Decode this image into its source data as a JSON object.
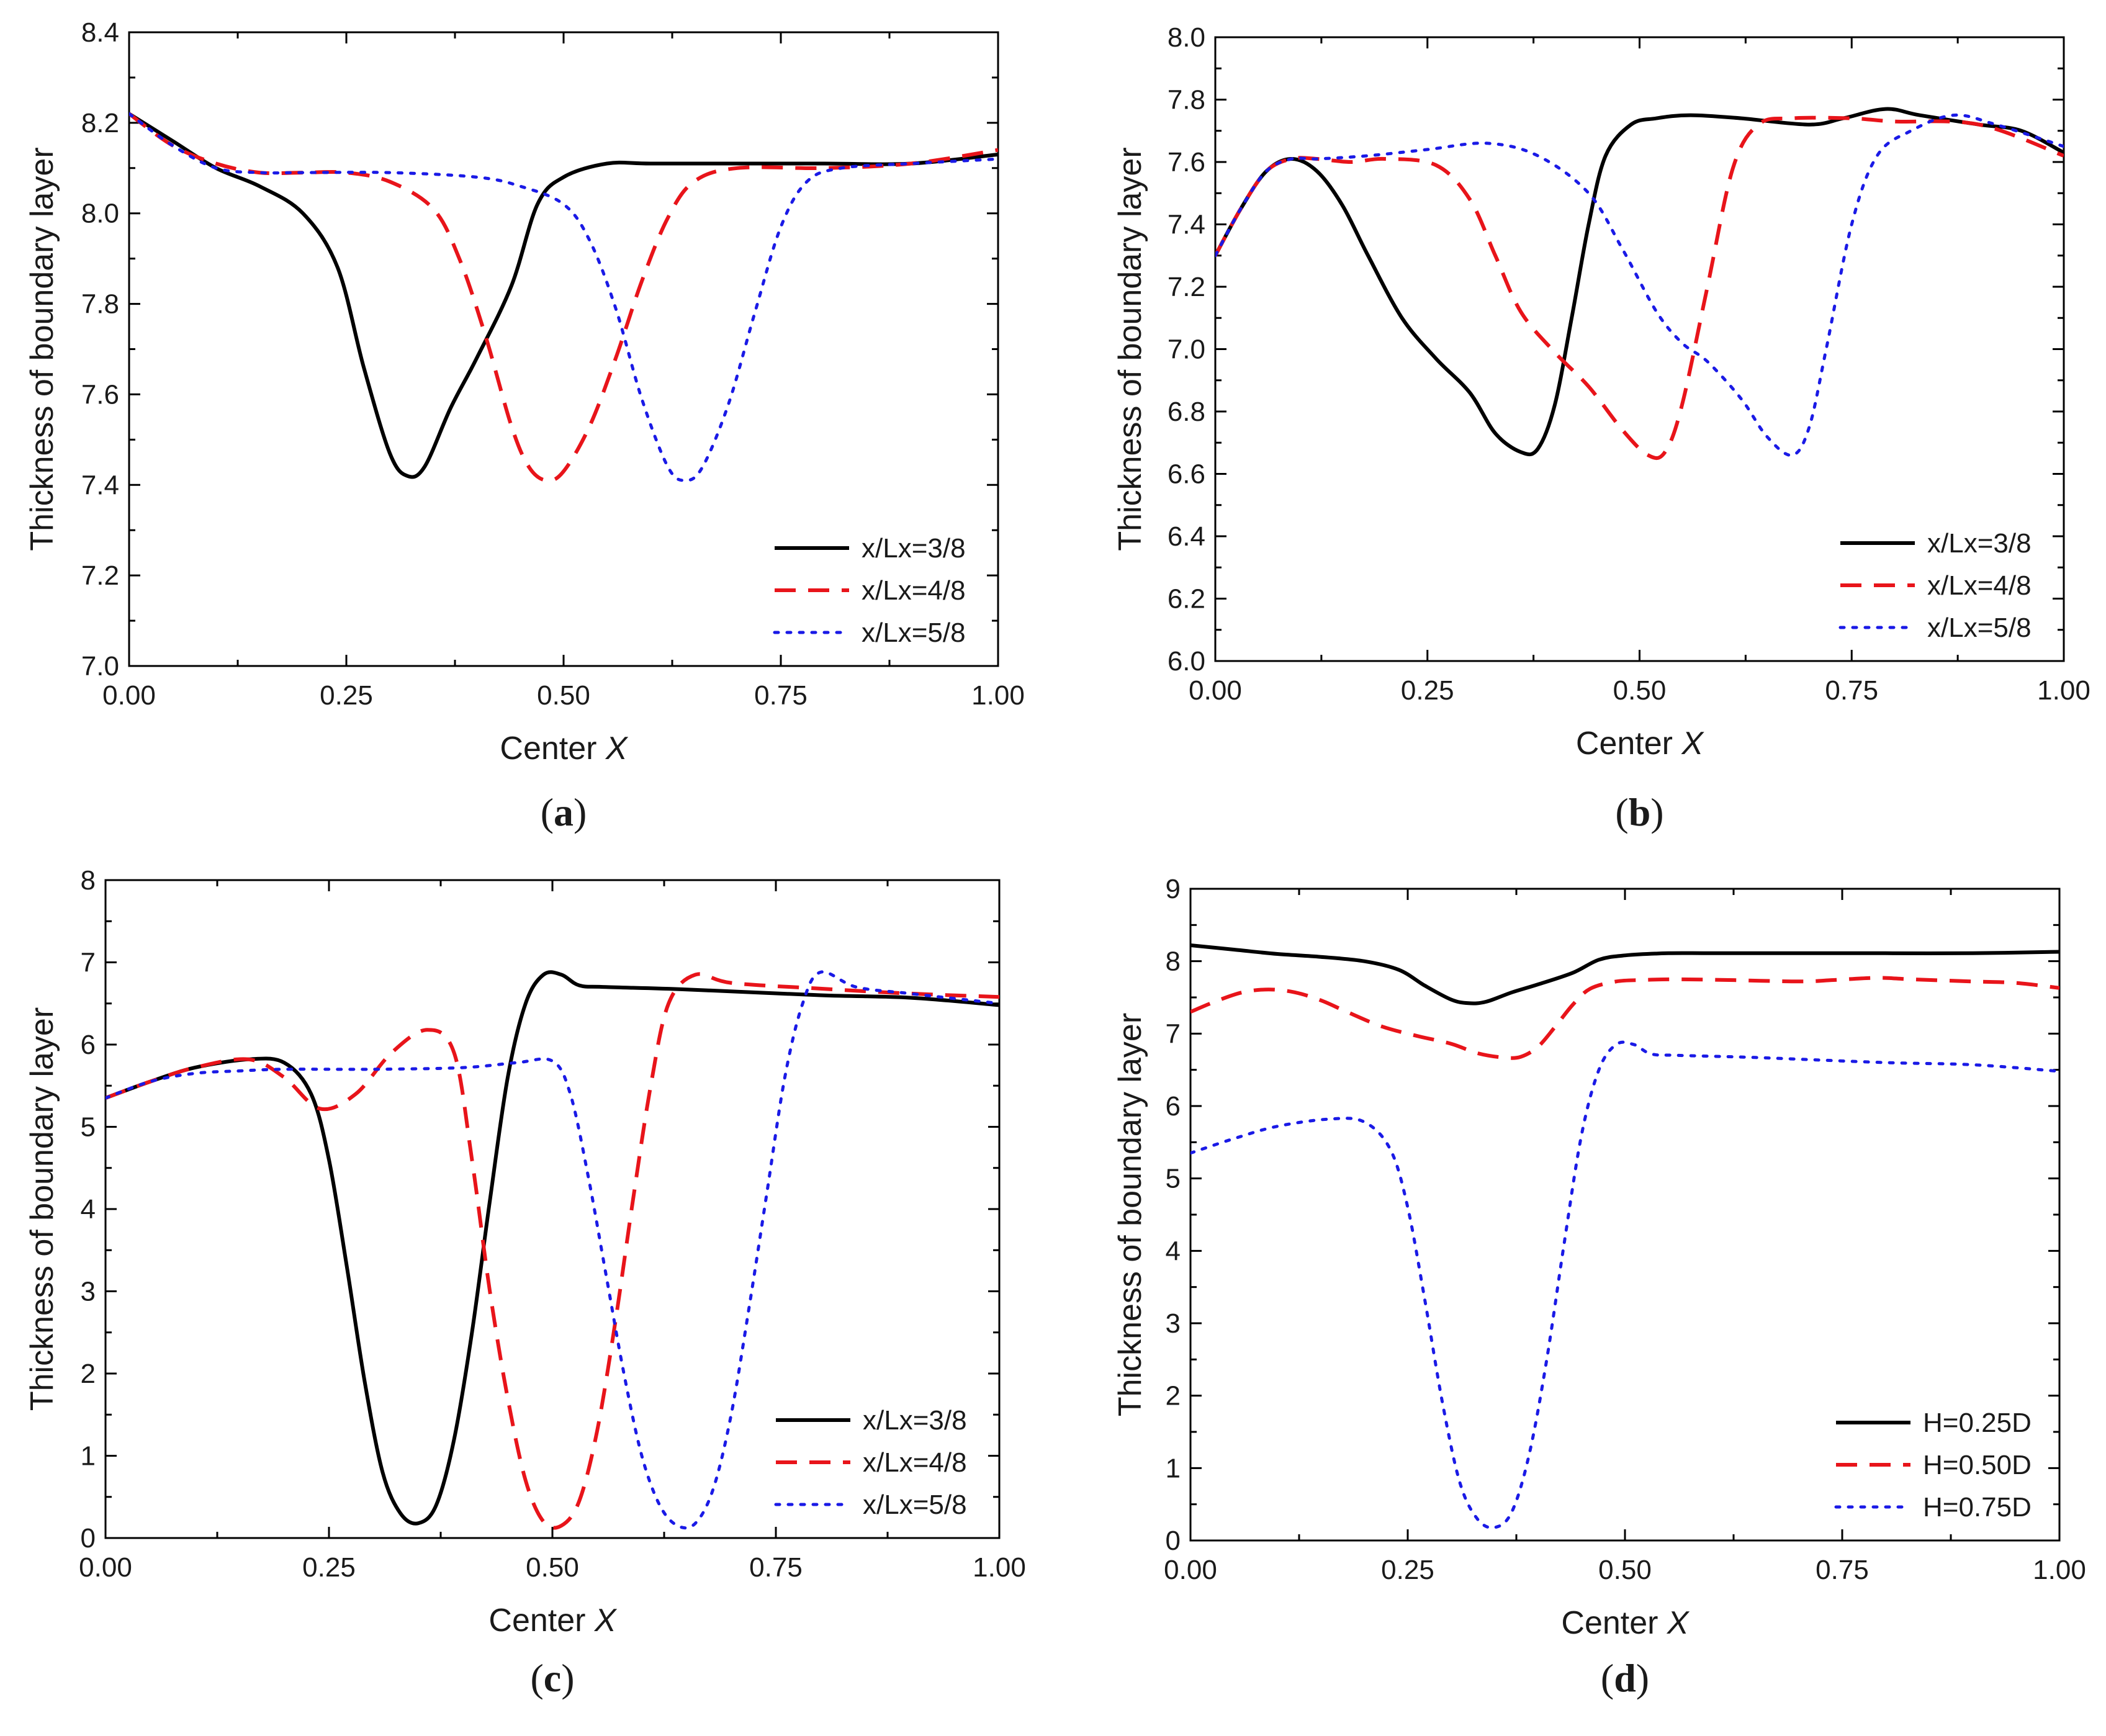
{
  "chart_data": [
    {
      "type": "line",
      "panel_key": "a",
      "caption": {
        "open": "(",
        "letter": "a",
        "close": ")"
      },
      "xlabel": "Center ",
      "xlabel_italic": "X",
      "ylabel": "Thickness of boundary layer",
      "xlim": [
        0,
        1
      ],
      "ylim": [
        7.0,
        8.4
      ],
      "x_ticks": [
        "0.00",
        "0.25",
        "0.50",
        "0.75",
        "1.00"
      ],
      "y_ticks": [
        "7.0",
        "7.2",
        "7.4",
        "7.6",
        "7.8",
        "8.0",
        "8.2",
        "8.4"
      ],
      "legend_position": "bottom-right",
      "series": [
        {
          "name": "x/Lx=3/8",
          "color": "#000000",
          "style": "solid",
          "x": [
            0,
            0.05,
            0.1,
            0.15,
            0.2,
            0.24,
            0.27,
            0.3,
            0.32,
            0.34,
            0.37,
            0.4,
            0.44,
            0.47,
            0.5,
            0.55,
            0.6,
            0.7,
            0.8,
            0.9,
            1.0
          ],
          "y": [
            8.22,
            8.16,
            8.1,
            8.06,
            8.0,
            7.88,
            7.66,
            7.47,
            7.42,
            7.44,
            7.57,
            7.68,
            7.84,
            8.02,
            8.08,
            8.11,
            8.11,
            8.11,
            8.11,
            8.11,
            8.13
          ]
        },
        {
          "name": "x/Lx=4/8",
          "color": "#e8141a",
          "style": "dash",
          "x": [
            0,
            0.05,
            0.1,
            0.15,
            0.2,
            0.25,
            0.3,
            0.35,
            0.38,
            0.41,
            0.44,
            0.46,
            0.48,
            0.5,
            0.53,
            0.56,
            0.59,
            0.62,
            0.65,
            0.7,
            0.8,
            0.9,
            1.0
          ],
          "y": [
            8.22,
            8.15,
            8.11,
            8.09,
            8.09,
            8.09,
            8.07,
            8.01,
            7.9,
            7.73,
            7.53,
            7.44,
            7.41,
            7.43,
            7.53,
            7.68,
            7.85,
            7.99,
            8.07,
            8.1,
            8.1,
            8.11,
            8.14
          ]
        },
        {
          "name": "x/Lx=5/8",
          "color": "#1a1ae6",
          "style": "dot",
          "x": [
            0,
            0.05,
            0.1,
            0.15,
            0.2,
            0.3,
            0.4,
            0.45,
            0.5,
            0.53,
            0.56,
            0.59,
            0.62,
            0.64,
            0.66,
            0.69,
            0.72,
            0.75,
            0.78,
            0.82,
            0.9,
            1.0
          ],
          "y": [
            8.22,
            8.15,
            8.1,
            8.09,
            8.09,
            8.09,
            8.08,
            8.06,
            8.02,
            7.94,
            7.79,
            7.59,
            7.44,
            7.41,
            7.44,
            7.58,
            7.78,
            7.97,
            8.07,
            8.1,
            8.11,
            8.12
          ]
        }
      ]
    },
    {
      "type": "line",
      "panel_key": "b",
      "caption": {
        "open": "(",
        "letter": "b",
        "close": ")"
      },
      "xlabel": "Center ",
      "xlabel_italic": "X",
      "ylabel": "Thickness of boundary layer",
      "xlim": [
        0,
        1
      ],
      "ylim": [
        6.0,
        8.0
      ],
      "x_ticks": [
        "0.00",
        "0.25",
        "0.50",
        "0.75",
        "1.00"
      ],
      "y_ticks": [
        "6.0",
        "6.2",
        "6.4",
        "6.6",
        "6.8",
        "7.0",
        "7.2",
        "7.4",
        "7.6",
        "7.8",
        "8.0"
      ],
      "legend_position": "bottom-right",
      "series": [
        {
          "name": "x/Lx=3/8",
          "color": "#000000",
          "style": "solid",
          "x": [
            0,
            0.03,
            0.06,
            0.09,
            0.12,
            0.15,
            0.18,
            0.22,
            0.26,
            0.3,
            0.33,
            0.36,
            0.38,
            0.4,
            0.42,
            0.44,
            0.46,
            0.49,
            0.52,
            0.56,
            0.62,
            0.7,
            0.74,
            0.79,
            0.83,
            0.9,
            0.95,
            1.0
          ],
          "y": [
            7.3,
            7.45,
            7.57,
            7.61,
            7.57,
            7.46,
            7.3,
            7.1,
            6.97,
            6.86,
            6.73,
            6.67,
            6.68,
            6.82,
            7.1,
            7.4,
            7.62,
            7.72,
            7.74,
            7.75,
            7.74,
            7.72,
            7.74,
            7.77,
            7.75,
            7.72,
            7.7,
            7.63
          ]
        },
        {
          "name": "x/Lx=4/8",
          "color": "#e8141a",
          "style": "dash",
          "x": [
            0,
            0.03,
            0.06,
            0.09,
            0.12,
            0.16,
            0.2,
            0.26,
            0.3,
            0.33,
            0.36,
            0.4,
            0.44,
            0.48,
            0.51,
            0.53,
            0.55,
            0.58,
            0.61,
            0.64,
            0.68,
            0.75,
            0.8,
            0.9,
            1.0
          ],
          "y": [
            7.3,
            7.45,
            7.57,
            7.61,
            7.61,
            7.6,
            7.61,
            7.59,
            7.48,
            7.3,
            7.12,
            6.99,
            6.88,
            6.74,
            6.66,
            6.67,
            6.82,
            7.2,
            7.58,
            7.72,
            7.74,
            7.74,
            7.73,
            7.72,
            7.62
          ]
        },
        {
          "name": "x/Lx=5/8",
          "color": "#1a1ae6",
          "style": "dot",
          "x": [
            0,
            0.03,
            0.06,
            0.09,
            0.12,
            0.18,
            0.25,
            0.32,
            0.38,
            0.44,
            0.48,
            0.52,
            0.55,
            0.58,
            0.62,
            0.65,
            0.68,
            0.7,
            0.72,
            0.75,
            0.78,
            0.82,
            0.87,
            0.92,
            1.0
          ],
          "y": [
            7.3,
            7.45,
            7.57,
            7.61,
            7.61,
            7.62,
            7.64,
            7.66,
            7.62,
            7.5,
            7.32,
            7.12,
            7.02,
            6.96,
            6.84,
            6.72,
            6.66,
            6.75,
            7.0,
            7.4,
            7.62,
            7.7,
            7.75,
            7.72,
            7.65
          ]
        }
      ]
    },
    {
      "type": "line",
      "panel_key": "c",
      "caption": {
        "open": "(",
        "letter": "c",
        "close": ")"
      },
      "xlabel": "Center ",
      "xlabel_italic": "X",
      "ylabel": "Thickness of boundary layer",
      "xlim": [
        0,
        1
      ],
      "ylim": [
        0,
        8
      ],
      "x_ticks": [
        "0.00",
        "0.25",
        "0.50",
        "0.75",
        "1.00"
      ],
      "y_ticks": [
        "0",
        "1",
        "2",
        "3",
        "4",
        "5",
        "6",
        "7",
        "8"
      ],
      "legend_position": "bottom-right",
      "series": [
        {
          "name": "x/Lx=3/8",
          "color": "#000000",
          "style": "solid",
          "x": [
            0,
            0.05,
            0.1,
            0.16,
            0.2,
            0.23,
            0.25,
            0.27,
            0.29,
            0.31,
            0.33,
            0.35,
            0.37,
            0.39,
            0.41,
            0.43,
            0.45,
            0.47,
            0.49,
            0.51,
            0.53,
            0.56,
            0.65,
            0.8,
            0.9,
            1.0
          ],
          "y": [
            5.35,
            5.55,
            5.72,
            5.82,
            5.78,
            5.4,
            4.6,
            3.3,
            1.9,
            0.8,
            0.3,
            0.18,
            0.4,
            1.2,
            2.5,
            4.1,
            5.6,
            6.5,
            6.85,
            6.85,
            6.72,
            6.7,
            6.67,
            6.6,
            6.57,
            6.48
          ]
        },
        {
          "name": "x/Lx=4/8",
          "color": "#e8141a",
          "style": "dash",
          "x": [
            0,
            0.05,
            0.1,
            0.16,
            0.2,
            0.24,
            0.28,
            0.32,
            0.36,
            0.39,
            0.41,
            0.43,
            0.45,
            0.47,
            0.49,
            0.51,
            0.53,
            0.55,
            0.57,
            0.59,
            0.61,
            0.63,
            0.66,
            0.7,
            0.8,
            0.9,
            1.0
          ],
          "y": [
            5.35,
            5.55,
            5.72,
            5.82,
            5.6,
            5.22,
            5.4,
            5.9,
            6.18,
            5.9,
            4.6,
            3.0,
            1.7,
            0.7,
            0.2,
            0.15,
            0.45,
            1.3,
            2.6,
            4.1,
            5.5,
            6.5,
            6.85,
            6.75,
            6.68,
            6.62,
            6.58
          ]
        },
        {
          "name": "x/Lx=5/8",
          "color": "#1a1ae6",
          "style": "dot",
          "x": [
            0,
            0.05,
            0.1,
            0.15,
            0.2,
            0.3,
            0.4,
            0.46,
            0.5,
            0.52,
            0.54,
            0.56,
            0.58,
            0.6,
            0.62,
            0.64,
            0.66,
            0.68,
            0.7,
            0.72,
            0.74,
            0.76,
            0.78,
            0.8,
            0.84,
            0.9,
            1.0
          ],
          "y": [
            5.35,
            5.55,
            5.65,
            5.68,
            5.7,
            5.7,
            5.72,
            5.78,
            5.8,
            5.4,
            4.4,
            3.2,
            2.0,
            1.0,
            0.4,
            0.15,
            0.18,
            0.6,
            1.5,
            2.8,
            4.2,
            5.6,
            6.5,
            6.88,
            6.7,
            6.62,
            6.5
          ]
        }
      ]
    },
    {
      "type": "line",
      "panel_key": "d",
      "caption": {
        "open": "(",
        "letter": "d",
        "close": ")"
      },
      "xlabel": "Center ",
      "xlabel_italic": "X",
      "ylabel": "Thickness of boundary layer",
      "xlim": [
        0,
        1
      ],
      "ylim": [
        0,
        9
      ],
      "x_ticks": [
        "0.00",
        "0.25",
        "0.50",
        "0.75",
        "1.00"
      ],
      "y_ticks": [
        "0",
        "1",
        "2",
        "3",
        "4",
        "5",
        "6",
        "7",
        "8",
        "9"
      ],
      "legend_position": "bottom-right",
      "series": [
        {
          "name": "H=0.25D",
          "color": "#000000",
          "style": "solid",
          "x": [
            0,
            0.05,
            0.1,
            0.15,
            0.2,
            0.24,
            0.27,
            0.3,
            0.32,
            0.34,
            0.37,
            0.4,
            0.44,
            0.47,
            0.5,
            0.55,
            0.6,
            0.7,
            0.8,
            0.9,
            1.0
          ],
          "y": [
            8.22,
            8.16,
            8.1,
            8.06,
            8.0,
            7.88,
            7.66,
            7.47,
            7.42,
            7.44,
            7.57,
            7.68,
            7.84,
            8.02,
            8.08,
            8.11,
            8.11,
            8.11,
            8.11,
            8.11,
            8.13
          ]
        },
        {
          "name": "H=0.50D",
          "color": "#e8141a",
          "style": "dash",
          "x": [
            0,
            0.03,
            0.06,
            0.09,
            0.12,
            0.15,
            0.18,
            0.22,
            0.26,
            0.3,
            0.33,
            0.36,
            0.38,
            0.4,
            0.42,
            0.44,
            0.46,
            0.49,
            0.52,
            0.56,
            0.62,
            0.7,
            0.74,
            0.79,
            0.83,
            0.9,
            0.95,
            1.0
          ],
          "y": [
            7.3,
            7.45,
            7.57,
            7.61,
            7.57,
            7.46,
            7.3,
            7.1,
            6.97,
            6.86,
            6.73,
            6.67,
            6.68,
            6.82,
            7.1,
            7.4,
            7.62,
            7.72,
            7.74,
            7.75,
            7.74,
            7.72,
            7.74,
            7.77,
            7.75,
            7.72,
            7.7,
            7.63
          ]
        },
        {
          "name": "H=0.75D",
          "color": "#1a1ae6",
          "style": "dot",
          "x": [
            0,
            0.05,
            0.1,
            0.16,
            0.2,
            0.23,
            0.25,
            0.27,
            0.29,
            0.31,
            0.33,
            0.35,
            0.37,
            0.39,
            0.41,
            0.43,
            0.45,
            0.47,
            0.49,
            0.51,
            0.53,
            0.56,
            0.65,
            0.8,
            0.9,
            1.0
          ],
          "y": [
            5.35,
            5.55,
            5.72,
            5.82,
            5.78,
            5.4,
            4.6,
            3.3,
            1.9,
            0.8,
            0.3,
            0.18,
            0.4,
            1.2,
            2.5,
            4.1,
            5.6,
            6.5,
            6.85,
            6.85,
            6.72,
            6.7,
            6.67,
            6.6,
            6.57,
            6.48
          ]
        }
      ]
    }
  ]
}
